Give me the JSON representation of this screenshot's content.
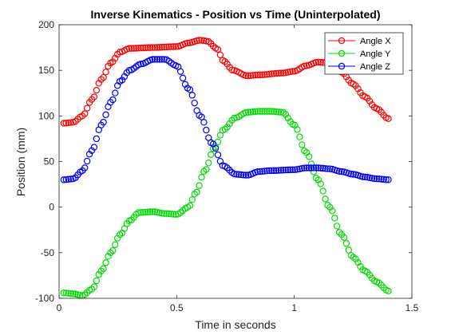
{
  "chart_data": {
    "type": "scatter",
    "title": "Inverse Kinematics - Position vs Time (Uninterpolated)",
    "xlabel": "Time in seconds",
    "ylabel": "Position (mm)",
    "xlim": [
      0,
      1.5
    ],
    "ylim": [
      -100,
      200
    ],
    "xticks": [
      0,
      0.5,
      1,
      1.5
    ],
    "xtick_labels": [
      "0",
      "0.5",
      "1",
      "1.5"
    ],
    "yticks": [
      -100,
      -50,
      0,
      50,
      100,
      150,
      200
    ],
    "ytick_labels": [
      "-100",
      "-50",
      "0",
      "50",
      "100",
      "150",
      "200"
    ],
    "grid": false,
    "legend": "top-right",
    "marker": "circle",
    "x_range": [
      0.02,
      1.4
    ],
    "point_count": 140,
    "series": [
      {
        "name": "Angle X",
        "color": "#ff0000",
        "keypoints": [
          [
            0.02,
            92
          ],
          [
            0.06,
            93
          ],
          [
            0.1,
            100
          ],
          [
            0.14,
            118
          ],
          [
            0.18,
            140
          ],
          [
            0.22,
            158
          ],
          [
            0.26,
            170
          ],
          [
            0.3,
            174
          ],
          [
            0.4,
            175
          ],
          [
            0.5,
            176
          ],
          [
            0.55,
            180
          ],
          [
            0.6,
            183
          ],
          [
            0.63,
            182
          ],
          [
            0.67,
            174
          ],
          [
            0.7,
            160
          ],
          [
            0.74,
            150
          ],
          [
            0.8,
            144
          ],
          [
            0.85,
            145
          ],
          [
            0.95,
            147
          ],
          [
            1.0,
            149
          ],
          [
            1.05,
            155
          ],
          [
            1.1,
            159
          ],
          [
            1.15,
            158
          ],
          [
            1.2,
            148
          ],
          [
            1.25,
            135
          ],
          [
            1.3,
            121
          ],
          [
            1.35,
            108
          ],
          [
            1.4,
            97
          ]
        ]
      },
      {
        "name": "Angle Y",
        "color": "#00dd00",
        "keypoints": [
          [
            0.02,
            -94
          ],
          [
            0.06,
            -95
          ],
          [
            0.1,
            -97
          ],
          [
            0.14,
            -90
          ],
          [
            0.18,
            -70
          ],
          [
            0.22,
            -50
          ],
          [
            0.26,
            -30
          ],
          [
            0.3,
            -15
          ],
          [
            0.34,
            -6
          ],
          [
            0.4,
            -5
          ],
          [
            0.45,
            -7
          ],
          [
            0.5,
            -8
          ],
          [
            0.55,
            0
          ],
          [
            0.58,
            15
          ],
          [
            0.62,
            40
          ],
          [
            0.66,
            65
          ],
          [
            0.7,
            85
          ],
          [
            0.75,
            98
          ],
          [
            0.8,
            104
          ],
          [
            0.85,
            105
          ],
          [
            0.9,
            105
          ],
          [
            0.95,
            104
          ],
          [
            1.0,
            90
          ],
          [
            1.05,
            60
          ],
          [
            1.1,
            30
          ],
          [
            1.15,
            0
          ],
          [
            1.2,
            -30
          ],
          [
            1.25,
            -55
          ],
          [
            1.3,
            -70
          ],
          [
            1.35,
            -82
          ],
          [
            1.4,
            -92
          ]
        ]
      },
      {
        "name": "Angle Z",
        "color": "#0000ff",
        "keypoints": [
          [
            0.02,
            30
          ],
          [
            0.06,
            31
          ],
          [
            0.1,
            40
          ],
          [
            0.14,
            62
          ],
          [
            0.18,
            90
          ],
          [
            0.22,
            115
          ],
          [
            0.26,
            138
          ],
          [
            0.3,
            150
          ],
          [
            0.35,
            157
          ],
          [
            0.4,
            162
          ],
          [
            0.45,
            162
          ],
          [
            0.5,
            155
          ],
          [
            0.55,
            130
          ],
          [
            0.6,
            100
          ],
          [
            0.65,
            70
          ],
          [
            0.7,
            45
          ],
          [
            0.75,
            36
          ],
          [
            0.8,
            35
          ],
          [
            0.85,
            39
          ],
          [
            0.9,
            40
          ],
          [
            1.0,
            41
          ],
          [
            1.05,
            43
          ],
          [
            1.1,
            43
          ],
          [
            1.15,
            42
          ],
          [
            1.2,
            39
          ],
          [
            1.25,
            36
          ],
          [
            1.3,
            33
          ],
          [
            1.35,
            31
          ],
          [
            1.4,
            30
          ]
        ]
      }
    ]
  }
}
